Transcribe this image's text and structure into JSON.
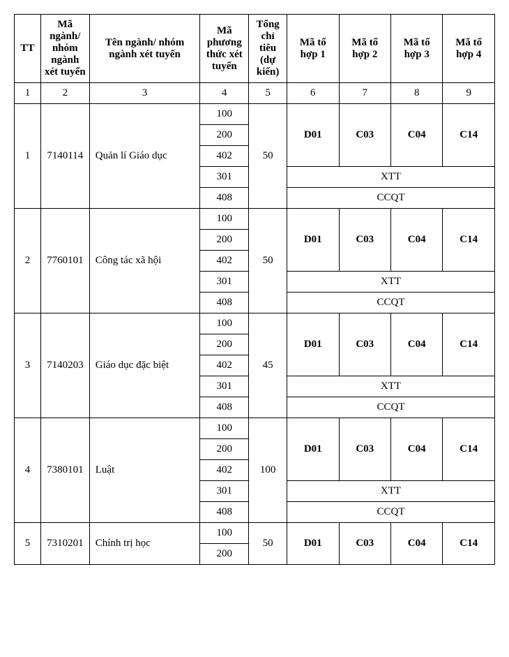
{
  "headers": {
    "tt": "TT",
    "ma_nganh": "Mã ngành/ nhóm ngành xét tuyển",
    "ten_nganh": "Tên ngành/ nhóm ngành xét tuyển",
    "ma_pt": "Mã phương thức xét tuyển",
    "tong_ct": "Tổng chỉ tiêu (dự kiến)",
    "mth1": "Mã tổ hợp 1",
    "mth2": "Mã tổ hợp 2",
    "mth3": "Mã tổ hợp 3",
    "mth4": "Mã tổ hợp 4"
  },
  "header_number_row": [
    "1",
    "2",
    "3",
    "4",
    "5",
    "6",
    "7",
    "8",
    "9"
  ],
  "methods": [
    "100",
    "200",
    "402",
    "301",
    "408"
  ],
  "combos": [
    "D01",
    "C03",
    "C04",
    "C14"
  ],
  "xtt": "XTT",
  "ccqt": "CCQT",
  "rows": [
    {
      "tt": "1",
      "ma": "7140114",
      "ten": "Quản lí Giáo dục",
      "ct": "50",
      "full": true
    },
    {
      "tt": "2",
      "ma": "7760101",
      "ten": "Công tác xã hội",
      "ct": "50",
      "full": true
    },
    {
      "tt": "3",
      "ma": "7140203",
      "ten": "Giáo dục đặc biệt",
      "ct": "45",
      "full": true
    },
    {
      "tt": "4",
      "ma": "7380101",
      "ten": "Luật",
      "ct": "100",
      "full": true
    },
    {
      "tt": "5",
      "ma": "7310201",
      "ten": "Chính trị học",
      "ct": "50",
      "full": false
    }
  ],
  "col_widths": {
    "tt": 38,
    "ma": 70,
    "ten": 160,
    "pt": 70,
    "ct": 55,
    "th": 75
  },
  "font_size": 15,
  "border_color": "#000000"
}
